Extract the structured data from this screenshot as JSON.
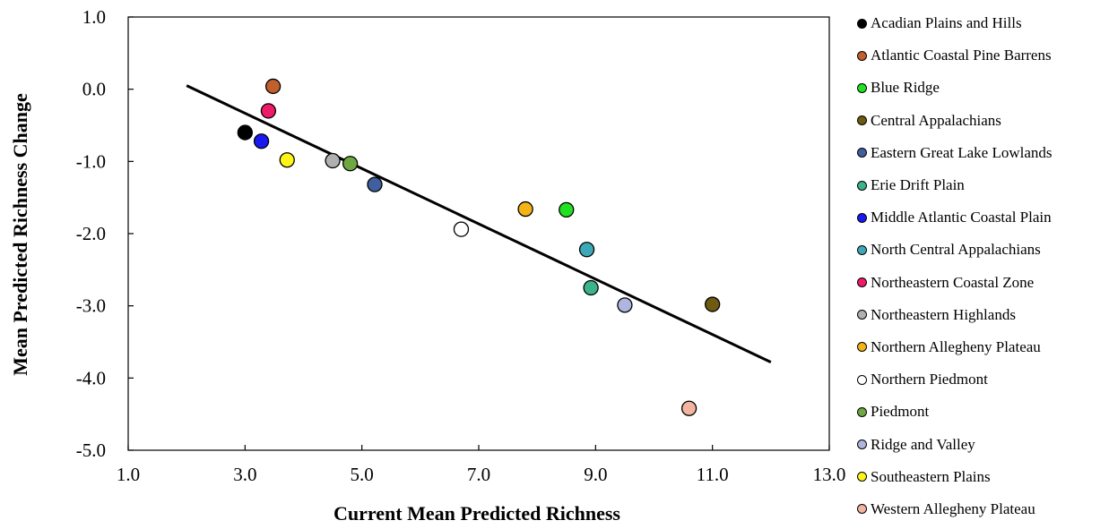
{
  "chart_data": {
    "type": "scatter",
    "title": "",
    "xlabel": "Current Mean Predicted Richness",
    "ylabel": "Mean Predicted Richness Change",
    "xlim": [
      1.0,
      13.0
    ],
    "ylim": [
      -5.0,
      1.0
    ],
    "x_ticks": [
      "1.0",
      "3.0",
      "5.0",
      "7.0",
      "9.0",
      "11.0",
      "13.0"
    ],
    "y_ticks": [
      "1.0",
      "0.0",
      "-1.0",
      "-2.0",
      "-3.0",
      "-4.0",
      "-5.0"
    ],
    "grid": false,
    "legend_position": "right",
    "trendline": {
      "x": [
        2.0,
        12.0
      ],
      "y": [
        0.05,
        -3.78
      ],
      "color": "#000000"
    },
    "series": [
      {
        "name": "Acadian Plains and Hills",
        "color": "#000000",
        "x": 3.0,
        "y": -0.6
      },
      {
        "name": "Atlantic Coastal Pine Barrens",
        "color": "#C0602C",
        "x": 3.48,
        "y": 0.04
      },
      {
        "name": "Blue Ridge",
        "color": "#22E022",
        "x": 8.5,
        "y": -1.67
      },
      {
        "name": "Central Appalachians",
        "color": "#6E5A10",
        "x": 11.0,
        "y": -2.98
      },
      {
        "name": "Eastern Great Lake Lowlands",
        "color": "#3F5F9E",
        "x": 5.22,
        "y": -1.32
      },
      {
        "name": "Erie Drift Plain",
        "color": "#3CB38A",
        "x": 8.92,
        "y": -2.75
      },
      {
        "name": "Middle Atlantic Coastal Plain",
        "color": "#1A1AF0",
        "x": 3.28,
        "y": -0.72
      },
      {
        "name": "North Central Appalachians",
        "color": "#3DA9B8",
        "x": 8.85,
        "y": -2.22
      },
      {
        "name": "Northeastern Coastal Zone",
        "color": "#EE1A6A",
        "x": 3.4,
        "y": -0.3
      },
      {
        "name": "Northeastern Highlands",
        "color": "#B0B0B0",
        "x": 4.5,
        "y": -0.99
      },
      {
        "name": "Northern Allegheny Plateau",
        "color": "#F4B418",
        "x": 7.8,
        "y": -1.66
      },
      {
        "name": "Northern Piedmont",
        "color": "#FFFFFF",
        "x": 6.7,
        "y": -1.94
      },
      {
        "name": "Piedmont",
        "color": "#6FA843",
        "x": 4.8,
        "y": -1.03
      },
      {
        "name": "Ridge and Valley",
        "color": "#AEB6E0",
        "x": 9.5,
        "y": -2.99
      },
      {
        "name": "Southeastern Plains",
        "color": "#FFF41A",
        "x": 3.72,
        "y": -0.98
      },
      {
        "name": "Western Allegheny Plateau",
        "color": "#F2B5A0",
        "x": 10.6,
        "y": -4.42
      }
    ]
  }
}
